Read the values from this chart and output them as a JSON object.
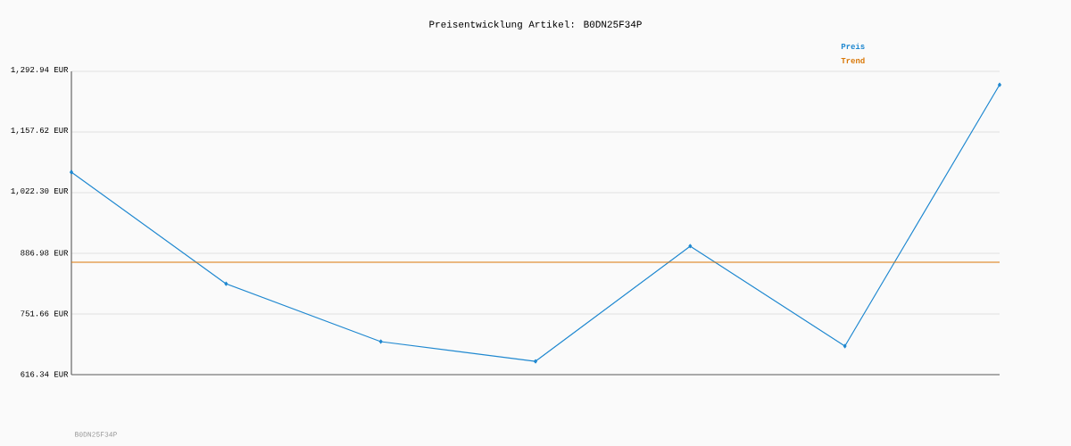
{
  "chart_data": {
    "type": "line",
    "title": "Preisentwicklung Artikel: B0DN25F34P",
    "categories": [
      null,
      null,
      null,
      null,
      null,
      null,
      null
    ],
    "series": [
      {
        "name": "Preis",
        "color": "#1f88d0",
        "values": [
          1068,
          819,
          690,
          646,
          903,
          680,
          1263
        ],
        "marker": "diamond"
      },
      {
        "name": "Trend",
        "color": "#d97706",
        "values": [
          867,
          867,
          867,
          867,
          867,
          867,
          867
        ],
        "marker": "none"
      }
    ],
    "ylim": [
      616.34,
      1292.94
    ],
    "yticks": [
      {
        "value": 616.34,
        "label": "616.34 EUR"
      },
      {
        "value": 751.66,
        "label": "751.66 EUR"
      },
      {
        "value": 886.98,
        "label": "886.98 EUR"
      },
      {
        "value": 1022.3,
        "label": "1,022.30 EUR"
      },
      {
        "value": 1157.62,
        "label": "1,157.62 EUR"
      },
      {
        "value": 1292.94,
        "label": "1,292.94 EUR"
      }
    ],
    "grid": "y",
    "legend": "top right",
    "annotations": [
      "B0DN25F34P"
    ]
  }
}
